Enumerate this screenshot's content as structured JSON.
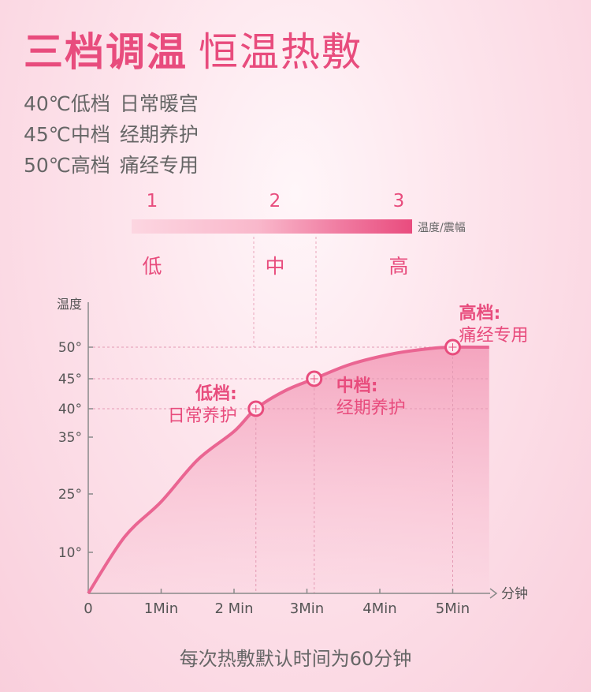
{
  "header": {
    "title_bold": "三档调温",
    "title_light": "恒温热敷"
  },
  "modes": [
    {
      "temp": "40℃低档",
      "desc": "日常暖宫"
    },
    {
      "temp": "45℃中档",
      "desc": "经期养护"
    },
    {
      "temp": "50℃高档",
      "desc": "痛经专用"
    }
  ],
  "levels": {
    "numbers": [
      "1",
      "2",
      "3"
    ],
    "words": [
      "低",
      "中",
      "高"
    ],
    "bar_label": "温度/震幅"
  },
  "colors": {
    "accent": "#e84c7d",
    "curve": "#ea6592",
    "fill_light": "#f9c2d3",
    "axis": "#888888"
  },
  "chart_data": {
    "type": "area",
    "ylabel": "温度",
    "xlabel": "分钟",
    "x_ticks": [
      "0",
      "1Min",
      "2 Min",
      "3Min",
      "4Min",
      "5Min"
    ],
    "y_ticks": [
      "10°",
      "25°",
      "35°",
      "40°",
      "45°",
      "50°"
    ],
    "y_tick_values": [
      10,
      25,
      35,
      40,
      45,
      50
    ],
    "grid": "dashed at annotated points",
    "curve": [
      [
        0,
        0
      ],
      [
        0.5,
        14
      ],
      [
        1,
        23
      ],
      [
        1.5,
        31
      ],
      [
        2,
        36
      ],
      [
        2.3,
        40
      ],
      [
        2.7,
        43
      ],
      [
        3.1,
        45
      ],
      [
        3.6,
        47.3
      ],
      [
        4.2,
        49
      ],
      [
        4.7,
        49.8
      ],
      [
        5,
        50
      ],
      [
        5.5,
        50
      ]
    ],
    "points": [
      {
        "x": 2.3,
        "y": 40,
        "title": "低档:",
        "sub": "日常养护"
      },
      {
        "x": 3.1,
        "y": 45,
        "title": "中档:",
        "sub": "经期养护"
      },
      {
        "x": 5.0,
        "y": 50,
        "title": "高档:",
        "sub": "痛经专用"
      }
    ]
  },
  "footer": "每次热敷默认时间为60分钟"
}
